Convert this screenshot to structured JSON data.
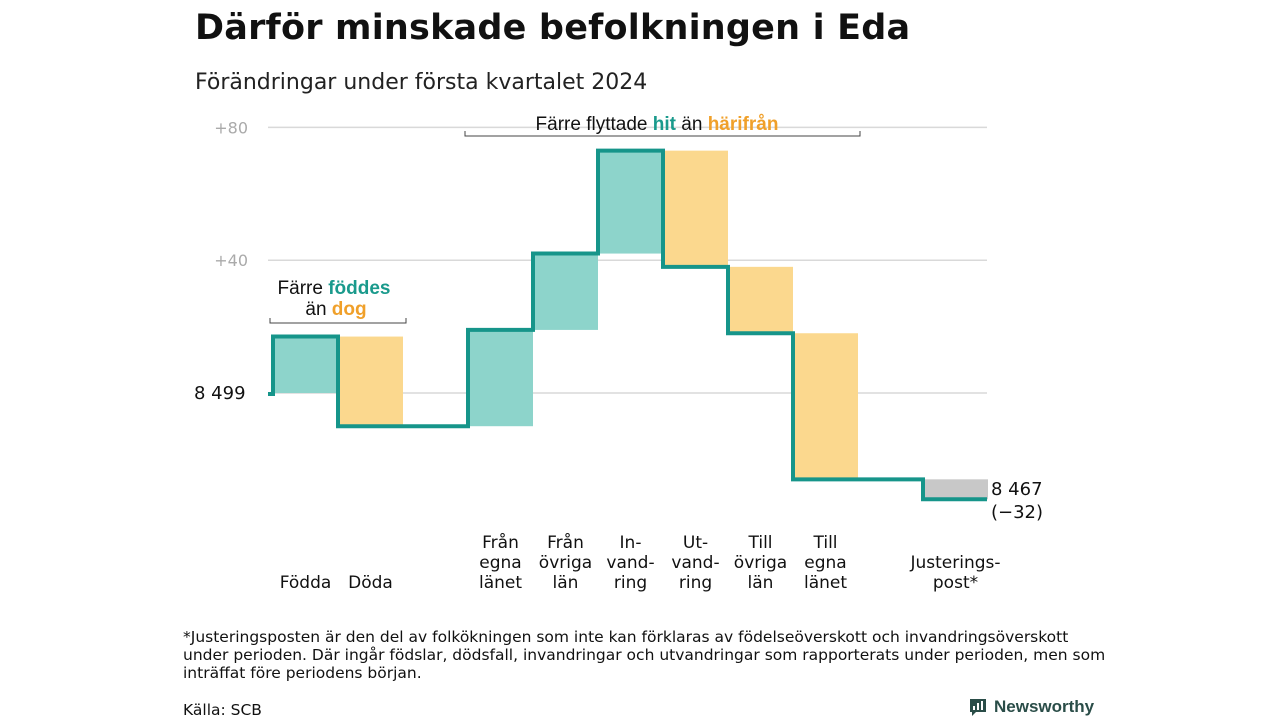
{
  "title": "Därför minskade befolkningen i Eda",
  "subtitle": "Förändringar under första kvartalet 2024",
  "colors": {
    "in": "#8dd4cb",
    "out": "#fbd88e",
    "adjust": "#c8c8c8",
    "line": "#16958a",
    "in_text": "#1a9a8c",
    "out_text": "#f0a02a",
    "grid": "#d9d9d9"
  },
  "chart_data": {
    "type": "waterfall",
    "start_value": 8499,
    "start_label": "8 499",
    "end_value": 8467,
    "end_label": "8 467",
    "end_change_label": "(−32)",
    "y_ticks": [
      {
        "label": "+80",
        "value": 80
      },
      {
        "label": "+40",
        "value": 40
      },
      {
        "label": "",
        "value": 0
      }
    ],
    "steps": [
      {
        "label": [
          "Födda"
        ],
        "value": 17,
        "kind": "in"
      },
      {
        "label": [
          "Döda"
        ],
        "value": -27,
        "kind": "out"
      },
      {
        "label": [
          "Från",
          "egna",
          "länet"
        ],
        "value": 29,
        "kind": "in"
      },
      {
        "label": [
          "Från",
          "övriga",
          "län"
        ],
        "value": 23,
        "kind": "in"
      },
      {
        "label": [
          "In-",
          "vand-",
          "ring"
        ],
        "value": 31,
        "kind": "in"
      },
      {
        "label": [
          "Ut-",
          "vand-",
          "ring"
        ],
        "value": -35,
        "kind": "out"
      },
      {
        "label": [
          "Till",
          "övriga",
          "län"
        ],
        "value": -20,
        "kind": "out"
      },
      {
        "label": [
          "Till",
          "egna",
          "länet"
        ],
        "value": -44,
        "kind": "out"
      },
      {
        "label": [
          "Justerings-",
          "post*"
        ],
        "value": -6,
        "kind": "adjust"
      }
    ],
    "annotations": {
      "births": {
        "line1": "Färre",
        "highlight1": "föddes",
        "line2": "än",
        "highlight2": "dog"
      },
      "moves": {
        "prefix": "Färre flyttade",
        "highlight1": "hit",
        "middle": "än",
        "highlight2": "härifrån"
      }
    }
  },
  "footnote": "*Justeringsposten är den del av folkökningen som inte kan förklaras av födelseöverskott och invandringsöverskott under perioden. Där ingår födslar, dödsfall, invandringar och utvandringar som rapporterats under perioden, men som inträffat före periodens början.",
  "source": "Källa: SCB",
  "brand": "Newsworthy"
}
